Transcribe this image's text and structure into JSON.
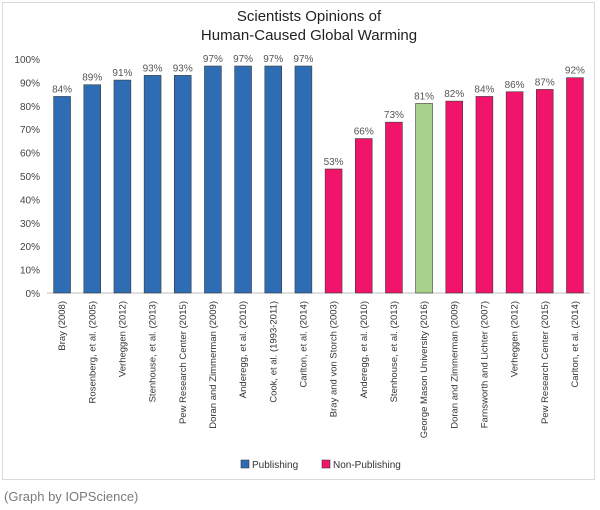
{
  "chart_data": {
    "type": "bar",
    "title": [
      "Scientists Opinions of",
      "Human-Caused Global Warming"
    ],
    "xlabel": "",
    "ylabel": "",
    "ylim": [
      0,
      100
    ],
    "yticks": [
      "0%",
      "10%",
      "20%",
      "30%",
      "40%",
      "50%",
      "60%",
      "70%",
      "80%",
      "90%",
      "100%"
    ],
    "categories": [
      "Bray (2008)",
      "Rosenberg, et al. (2005)",
      "Verheggen (2012)",
      "Stenhouse, et al. (2013)",
      "Pew Research Center (2015)",
      "Doran and Zimmerman (2009)",
      "Anderegg, et al. (2010)",
      "Cook, et al. (1993-2011)",
      "Carlton, et al. (2014)",
      "Bray and von Storch (2003)",
      "Anderegg, et al. (2010)",
      "Stenhouse, et al. (2013)",
      "George Mason University (2016)",
      "Doran and Zimmerman (2009)",
      "Farnsworth and Lichter (2007)",
      "Verheggen (2012)",
      "Pew Research Center (2015)",
      "Carlton, et al. (2014)"
    ],
    "values": [
      84,
      89,
      91,
      93,
      93,
      97,
      97,
      97,
      97,
      53,
      66,
      73,
      81,
      82,
      84,
      86,
      87,
      92
    ],
    "value_labels": [
      "84%",
      "89%",
      "91%",
      "93%",
      "93%",
      "97%",
      "97%",
      "97%",
      "97%",
      "53%",
      "66%",
      "73%",
      "81%",
      "82%",
      "84%",
      "86%",
      "87%",
      "92%"
    ],
    "bar_groups": [
      "publishing",
      "publishing",
      "publishing",
      "publishing",
      "publishing",
      "publishing",
      "publishing",
      "publishing",
      "publishing",
      "nonpublishing",
      "nonpublishing",
      "nonpublishing",
      "highlight",
      "nonpublishing",
      "nonpublishing",
      "nonpublishing",
      "nonpublishing",
      "nonpublishing"
    ],
    "colors": {
      "publishing": "#2e6db3",
      "nonpublishing": "#f0146a",
      "highlight": "#a9d18e"
    },
    "legend": {
      "placement": "bottom",
      "entries": [
        {
          "label": "Publishing",
          "color": "#2e6db3"
        },
        {
          "label": "Non-Publishing",
          "color": "#f0146a"
        }
      ]
    },
    "grid": false
  },
  "caption": "(Graph by IOPScience)"
}
